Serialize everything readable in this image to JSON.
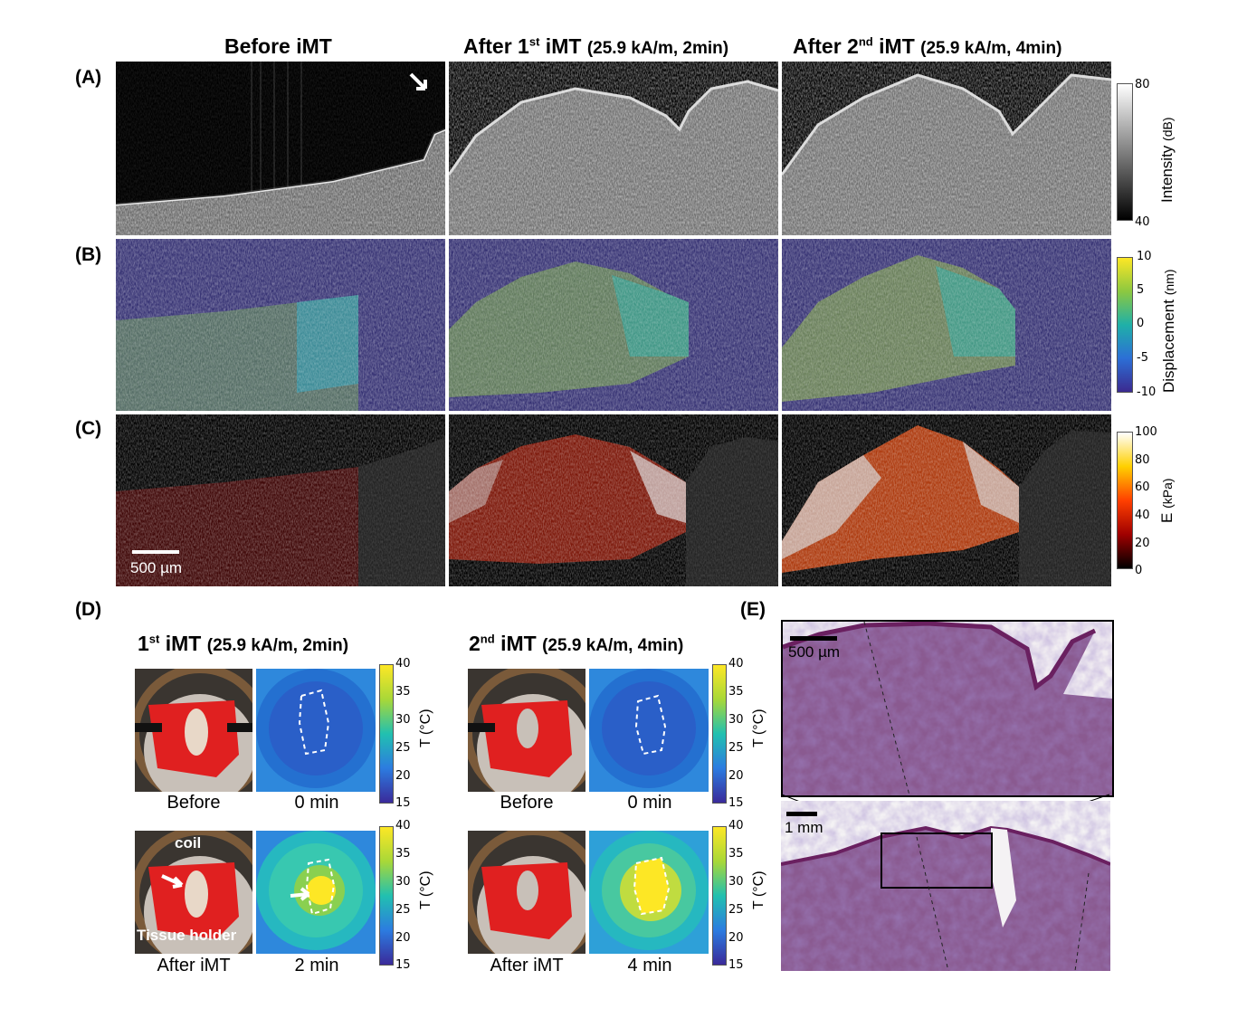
{
  "columns": {
    "before": "Before iMT",
    "after1_main": "After 1",
    "after1_sup": "st",
    "after1_rest": " iMT",
    "after1_params": "(25.9 kA/m, 2min)",
    "after2_main": "After 2",
    "after2_sup": "nd",
    "after2_rest": " iMT",
    "after2_params": "(25.9 kA/m, 4min)"
  },
  "rows": {
    "a": "(A)",
    "b": "(B)",
    "c": "(C)",
    "d": "(D)",
    "e": "(E)"
  },
  "colorbars": {
    "intensity": {
      "label": "Intensity",
      "unit": "(dB)",
      "max": "80",
      "min": "40"
    },
    "displacement": {
      "label": "Displacement",
      "unit": "(nm)",
      "ticks": [
        "10",
        "5",
        "0",
        "-5",
        "-10"
      ]
    },
    "modulus": {
      "label": "E",
      "unit": "(kPa)",
      "ticks": [
        "100",
        "80",
        "60",
        "40",
        "20",
        "0"
      ]
    },
    "temperature": {
      "label": "T",
      "unit": "(°C)",
      "ticks": [
        "40",
        "35",
        "30",
        "25",
        "20",
        "15"
      ]
    }
  },
  "scalebars": {
    "oct": "500 µm",
    "histo_zoom": "500 µm",
    "histo_full": "1 mm"
  },
  "panel_d": {
    "first_main": "1",
    "first_sup": "st",
    "first_rest": " iMT",
    "first_params": "(25.9 kA/m, 2min)",
    "second_main": "2",
    "second_sup": "nd",
    "second_rest": " iMT",
    "second_params": "(25.9 kA/m, 4min)",
    "captions": {
      "before": "Before",
      "zero_min": "0 min",
      "after": "After iMT",
      "two_min": "2 min",
      "four_min": "4 min"
    },
    "annotations": {
      "coil": "coil",
      "holder": "Tissue holder"
    }
  }
}
